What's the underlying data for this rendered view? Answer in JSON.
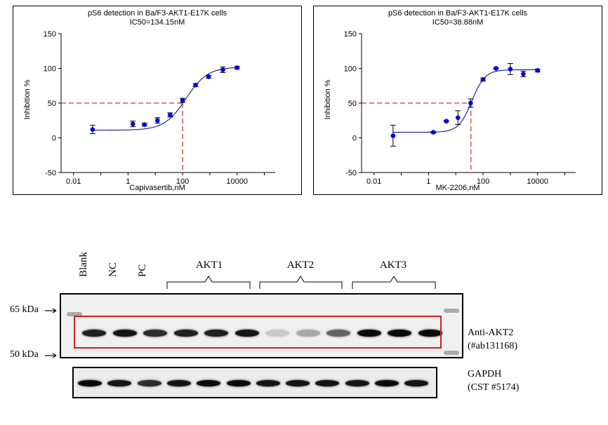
{
  "chart_data": [
    {
      "type": "scatter",
      "title": "pS6  detection  in Ba/F3-AKT1-E17K  cells",
      "subtitle": "IC50=134.15nM",
      "xlabel": "Capivasertib,nM",
      "ylabel": "Inhibition %",
      "xscale": "log",
      "xlim": [
        0.0035,
        250000
      ],
      "ylim": [
        -50,
        150
      ],
      "xticks": [
        "0.01",
        "1",
        "100",
        "10000"
      ],
      "yticks": [
        "-50",
        "0",
        "50",
        "100",
        "150"
      ],
      "x": [
        0.05,
        1.5,
        4,
        12,
        35,
        100,
        300,
        900,
        3000,
        10000
      ],
      "y": [
        12,
        20,
        19,
        25,
        33,
        54,
        76,
        88,
        98,
        101
      ],
      "err": [
        6,
        4,
        2,
        4,
        3,
        3,
        2,
        2,
        4,
        2
      ],
      "fit": {
        "bottom": 11,
        "top": 102,
        "ic50": 134.15,
        "hill": 1.1
      },
      "ic50_marker": {
        "x": 100,
        "y": 50
      },
      "marker_color": "#0000dd",
      "curve_color": "#000088",
      "guide_color": "#cc0000"
    },
    {
      "type": "scatter",
      "title": "pS6  detection  in Ba/F3-AKT1-E17K  cells",
      "subtitle": "IC50=38.88nM",
      "xlabel": "MK-2206,nM",
      "ylabel": "Inhibition %",
      "xscale": "log",
      "xlim": [
        0.0035,
        250000
      ],
      "ylim": [
        -50,
        150
      ],
      "xticks": [
        "0.01",
        "1",
        "100",
        "10000"
      ],
      "yticks": [
        "-50",
        "0",
        "50",
        "100",
        "150"
      ],
      "x": [
        0.05,
        1.5,
        4.5,
        12,
        35,
        100,
        300,
        1000,
        3000,
        10000
      ],
      "y": [
        3,
        8,
        24,
        29,
        50,
        84,
        100,
        99,
        92,
        97
      ],
      "err": [
        15,
        1,
        1,
        10,
        6,
        2,
        1,
        8,
        4,
        2
      ],
      "fit": {
        "bottom": 8,
        "top": 98,
        "ic50": 38.88,
        "hill": 1.8
      },
      "ic50_marker": {
        "x": 36,
        "y": 50
      },
      "marker_color": "#0000dd",
      "curve_color": "#000088",
      "guide_color": "#cc0000"
    }
  ],
  "blot": {
    "lanes": [
      "Blank",
      "NC",
      "PC"
    ],
    "groups": [
      "AKT1",
      "AKT2",
      "AKT3"
    ],
    "markers": [
      "65 kDa",
      "50 kDa"
    ],
    "antibody": "Anti-AKT2",
    "antibody_cat": "(#ab131168)",
    "loading": "GAPDH",
    "loading_cat": "(CST #5174)",
    "main_band_intensity": [
      0.9,
      0.95,
      0.85,
      0.9,
      0.9,
      0.95,
      0.15,
      0.3,
      0.6,
      1.0,
      1.0,
      1.0
    ],
    "gapdh_band_intensity": [
      1.0,
      0.95,
      0.85,
      0.95,
      1.0,
      1.0,
      0.95,
      0.95,
      0.95,
      0.95,
      1.0,
      0.95
    ],
    "highlight_color": "#d42020"
  }
}
